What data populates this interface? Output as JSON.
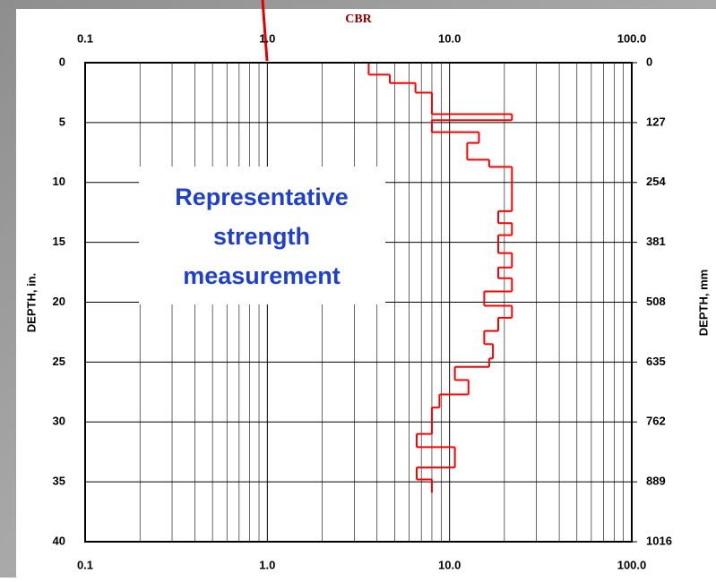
{
  "chart_data": {
    "type": "step",
    "title": "CBR",
    "xlabel": "DEPTH, in.",
    "y2label": "DEPTH, mm",
    "annotation": [
      "Representative",
      "strength",
      "measurement"
    ],
    "xscale": "log",
    "xlim": [
      0.1,
      100
    ],
    "xticks": [
      {
        "value": 0.1,
        "label": "0.1"
      },
      {
        "value": 1,
        "label": "1.0"
      },
      {
        "value": 10,
        "label": "10.0"
      },
      {
        "value": 100,
        "label": "100.0"
      }
    ],
    "ylim": [
      0,
      40
    ],
    "yticks": [
      0,
      5,
      10,
      15,
      20,
      25,
      30,
      35,
      40
    ],
    "y2lim": [
      0,
      1016
    ],
    "y2ticks": [
      0,
      127,
      254,
      381,
      508,
      635,
      762,
      889,
      1016
    ],
    "grid": true,
    "color": "#ff0000",
    "depth_bins": [
      0,
      1,
      1.7,
      2.5,
      4.3,
      4.8,
      5.8,
      6.7,
      8.1,
      8.7,
      12.4,
      13.4,
      14.4,
      15.9,
      17.1,
      18,
      19.1,
      20.3,
      21.3,
      22.4,
      23.5,
      24.7,
      25.4,
      26.5,
      27.7,
      28.8,
      31,
      32.1,
      33.8,
      34.8,
      35.9
    ],
    "values": [
      3.6,
      4.7,
      6.5,
      8,
      22,
      8,
      14.5,
      12.5,
      16.5,
      22,
      18.5,
      22,
      18.5,
      22,
      18.5,
      22,
      15.5,
      22,
      18.5,
      15.5,
      17.3,
      16.5,
      10.7,
      12.7,
      8.8,
      8,
      6.6,
      10.7,
      6.6,
      8
    ]
  }
}
